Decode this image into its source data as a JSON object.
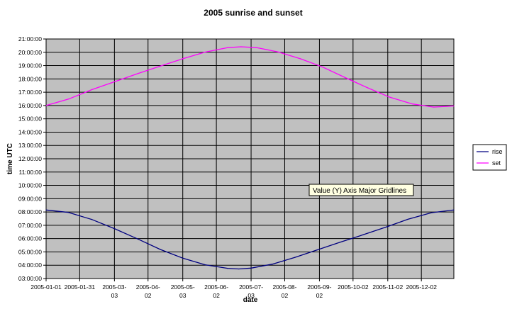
{
  "chart_data": {
    "type": "line",
    "title": "2005 sunrise and sunset",
    "xlabel": "date",
    "ylabel": "time UTC",
    "x_start": "2005-01-01",
    "x_end": "2005-12-31",
    "x_ticks": [
      {
        "date": "2005-01-01",
        "label": [
          "2005-01-01"
        ]
      },
      {
        "date": "2005-01-31",
        "label": [
          "2005-01-31"
        ]
      },
      {
        "date": "2005-03-03",
        "label": [
          "2005-03-",
          "03"
        ]
      },
      {
        "date": "2005-04-02",
        "label": [
          "2005-04-",
          "02"
        ]
      },
      {
        "date": "2005-05-03",
        "label": [
          "2005-05-",
          "03"
        ]
      },
      {
        "date": "2005-06-02",
        "label": [
          "2005-06-",
          "02"
        ]
      },
      {
        "date": "2005-07-03",
        "label": [
          "2005-07-",
          "03"
        ]
      },
      {
        "date": "2005-08-02",
        "label": [
          "2005-08-",
          "02"
        ]
      },
      {
        "date": "2005-09-02",
        "label": [
          "2005-09-",
          "02"
        ]
      },
      {
        "date": "2005-10-02",
        "label": [
          "2005-10-02"
        ]
      },
      {
        "date": "2005-11-02",
        "label": [
          "2005-11-02"
        ]
      },
      {
        "date": "2005-12-02",
        "label": [
          "2005-12-02"
        ]
      }
    ],
    "y_ticks": [
      "03:00:00",
      "04:00:00",
      "05:00:00",
      "06:00:00",
      "07:00:00",
      "08:00:00",
      "09:00:00",
      "10:00:00",
      "11:00:00",
      "12:00:00",
      "13:00:00",
      "14:00:00",
      "15:00:00",
      "16:00:00",
      "17:00:00",
      "18:00:00",
      "19:00:00",
      "20:00:00",
      "21:00:00"
    ],
    "ylim": [
      "03:00:00",
      "21:00:00"
    ],
    "grid": true,
    "legend_position": "right",
    "plot_background": "#c0c0c0",
    "series": [
      {
        "name": "rise",
        "color": "#000080",
        "points": [
          [
            "2005-01-01",
            "08:09"
          ],
          [
            "2005-01-21",
            "07:58"
          ],
          [
            "2005-02-11",
            "07:26"
          ],
          [
            "2005-03-03",
            "06:45"
          ],
          [
            "2005-03-24",
            "05:58"
          ],
          [
            "2005-04-13",
            "05:11"
          ],
          [
            "2005-05-03",
            "04:32"
          ],
          [
            "2005-05-23",
            "04:02"
          ],
          [
            "2005-06-12",
            "03:46"
          ],
          [
            "2005-06-22",
            "03:43"
          ],
          [
            "2005-07-03",
            "03:47"
          ],
          [
            "2005-07-22",
            "04:05"
          ],
          [
            "2005-08-11",
            "04:35"
          ],
          [
            "2005-08-31",
            "05:09"
          ],
          [
            "2005-09-20",
            "05:43"
          ],
          [
            "2005-10-11",
            "06:17"
          ],
          [
            "2005-11-01",
            "06:53"
          ],
          [
            "2005-11-20",
            "07:27"
          ],
          [
            "2005-12-11",
            "07:57"
          ],
          [
            "2005-12-31",
            "08:09"
          ]
        ]
      },
      {
        "name": "set",
        "color": "#ff00ff",
        "points": [
          [
            "2005-01-01",
            "16:00"
          ],
          [
            "2005-01-21",
            "16:29"
          ],
          [
            "2005-02-11",
            "17:12"
          ],
          [
            "2005-03-03",
            "17:47"
          ],
          [
            "2005-03-24",
            "18:24"
          ],
          [
            "2005-04-13",
            "18:58"
          ],
          [
            "2005-05-03",
            "19:31"
          ],
          [
            "2005-05-23",
            "20:01"
          ],
          [
            "2005-06-12",
            "20:21"
          ],
          [
            "2005-06-24",
            "20:25"
          ],
          [
            "2005-07-08",
            "20:21"
          ],
          [
            "2005-07-27",
            "20:02"
          ],
          [
            "2005-08-16",
            "19:31"
          ],
          [
            "2005-09-05",
            "18:53"
          ],
          [
            "2005-09-25",
            "18:06"
          ],
          [
            "2005-10-15",
            "17:20"
          ],
          [
            "2005-11-04",
            "16:37"
          ],
          [
            "2005-11-24",
            "16:07"
          ],
          [
            "2005-12-13",
            "15:53"
          ],
          [
            "2005-12-31",
            "15:58"
          ]
        ]
      }
    ]
  },
  "tooltip": {
    "text": "Value (Y) Axis Major Gridlines"
  }
}
